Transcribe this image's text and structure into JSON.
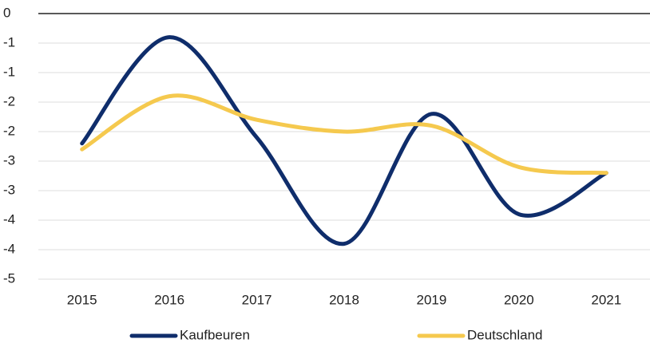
{
  "chart_data": {
    "type": "line",
    "categories": [
      "2015",
      "2016",
      "2017",
      "2018",
      "2019",
      "2020",
      "2021"
    ],
    "series": [
      {
        "name": "Kaufbeuren",
        "color": "#0f2d6b",
        "values": [
          -2.2,
          -0.4,
          -2.1,
          -3.9,
          -1.7,
          -3.4,
          -2.7
        ]
      },
      {
        "name": "Deutschland",
        "color": "#f5c94e",
        "values": [
          -2.3,
          -1.4,
          -1.8,
          -2.0,
          -1.9,
          -2.6,
          -2.7
        ]
      }
    ],
    "ylim": [
      -4.5,
      0
    ],
    "yticks": [
      0,
      {
        "value": -0.5,
        "label": "-1"
      },
      -1,
      {
        "value": -1.5,
        "label": "-2"
      },
      -2,
      {
        "value": -2.5,
        "label": "-3"
      },
      -3,
      {
        "value": -3.5,
        "label": "-4"
      },
      -4,
      {
        "value": -4.5,
        "label": "-5"
      }
    ],
    "grid": true,
    "legend": "bottom"
  }
}
